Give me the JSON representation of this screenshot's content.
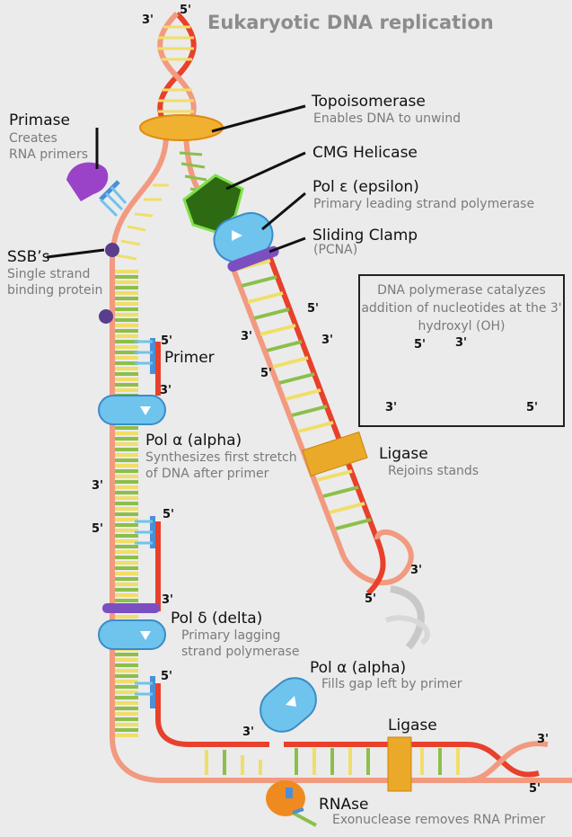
{
  "title": "Eukaryotic DNA replication",
  "labels": {
    "topoisomerase": {
      "name": "Topoisomerase",
      "desc": "Enables DNA to unwind"
    },
    "helicase": {
      "name": "CMG Helicase"
    },
    "pol_epsilon": {
      "name": "Pol ε (epsilon)",
      "desc": "Primary leading strand polymerase"
    },
    "clamp": {
      "name": "Sliding Clamp",
      "desc": "(PCNA)"
    },
    "primase": {
      "name": "Primase",
      "desc1": "Creates",
      "desc2": "RNA primers"
    },
    "ssb": {
      "name": "SSB’s",
      "desc1": "Single strand",
      "desc2": "binding protein"
    },
    "primer": {
      "name": "Primer"
    },
    "pol_alpha": {
      "name": "Pol α (alpha)",
      "desc1": "Synthesizes first stretch",
      "desc2": "of DNA after primer"
    },
    "ligase_mid": {
      "name": "Ligase",
      "desc": "Rejoins stands"
    },
    "pol_delta": {
      "name": "Pol δ (delta)",
      "desc1": "Primary lagging",
      "desc2": "strand polymerase"
    },
    "pol_alpha_gap": {
      "name": "Pol α (alpha)",
      "desc": "Fills gap left by primer"
    },
    "ligase_bottom": {
      "name": "Ligase"
    },
    "rnase": {
      "name": "RNAse",
      "desc": "Exonuclease removes RNA Primer"
    }
  },
  "inset": {
    "caption": "DNA polymerase catalyzes addition of nucleotides at the 3' hydroxyl (OH)"
  },
  "ends": {
    "three": "3'",
    "five": "5'"
  },
  "colors": {
    "template_strand": "#e8402b",
    "lagging_strand": "#f29a80",
    "base_yellow": "#f0de68",
    "base_green": "#8cbf4a",
    "polymerase": "#6ec4ec",
    "primer": "#4a8fd8",
    "primase": "#9a43c8",
    "helicase": "#2e6a12",
    "topoisomerase": "#f0b030",
    "ligase": "#eaa928",
    "rnase": "#ef8a1f",
    "clamp": "#7c4fc0",
    "ssb": "#5a3d8c"
  }
}
